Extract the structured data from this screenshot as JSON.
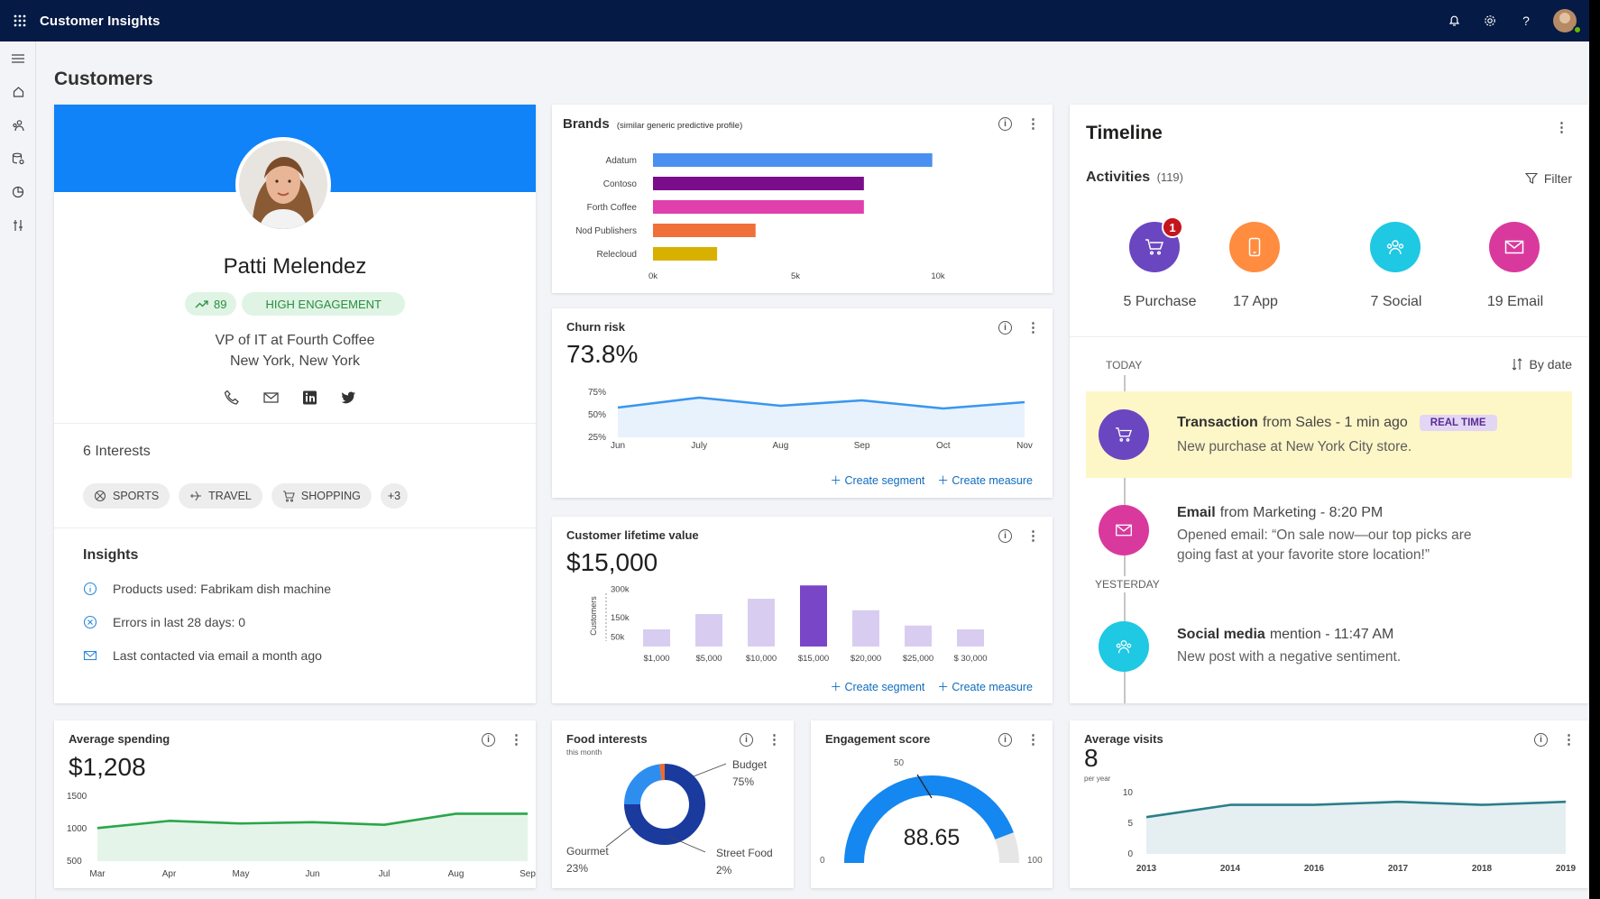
{
  "app": {
    "title": "Customer Insights"
  },
  "page": {
    "title": "Customers"
  },
  "profile": {
    "name": "Patti Melendez",
    "score": "89",
    "engagement": "HIGH ENGAGEMENT",
    "role": "VP of IT at Fourth Coffee",
    "location": "New York, New York",
    "interests_title": "6 Interests",
    "interests": [
      "SPORTS",
      "TRAVEL",
      "SHOPPING",
      "+3"
    ],
    "insights_title": "Insights",
    "insights": [
      "Products used: Fabrikam dish machine",
      "Errors in last 28 days: 0",
      "Last contacted via email a month ago"
    ]
  },
  "brands": {
    "title": "Brands",
    "subtitle": "(similar generic predictive profile)"
  },
  "churn": {
    "title": "Churn risk",
    "value": "73.8%",
    "create_segment": "Create segment",
    "create_measure": "Create measure"
  },
  "clv": {
    "title": "Customer lifetime value",
    "value": "$15,000",
    "ylabel": "Customers",
    "create_segment": "Create segment",
    "create_measure": "Create measure"
  },
  "avg_spending": {
    "title": "Average spending",
    "value": "$1,208"
  },
  "food": {
    "title": "Food interests",
    "subtitle": "this month",
    "labels": [
      {
        "name": "Budget",
        "pct": "75%"
      },
      {
        "name": "Gourmet",
        "pct": "23%"
      },
      {
        "name": "Street Food",
        "pct": "2%"
      }
    ]
  },
  "engagement": {
    "title": "Engagement score",
    "value": "88.65",
    "min": "0",
    "mid": "50",
    "max": "100"
  },
  "avg_visits": {
    "title": "Average visits",
    "value": "8",
    "unit": "per year"
  },
  "timeline": {
    "title": "Timeline",
    "activities_label": "Activities",
    "activities_count": "(119)",
    "filter": "Filter",
    "badge": "1",
    "categories": [
      {
        "label": "5 Purchase",
        "color": "#6b46c1"
      },
      {
        "label": "17 App",
        "color": "#ff8c3f"
      },
      {
        "label": "7 Social",
        "color": "#1fc8e3"
      },
      {
        "label": "19 Email",
        "color": "#d9399d"
      }
    ],
    "today": "TODAY",
    "yesterday": "YESTERDAY",
    "sort": "By date",
    "events": [
      {
        "title": "Transaction",
        "source": "from Sales - 1 min ago",
        "tag": "REAL TIME",
        "body": "New purchase at New York City store."
      },
      {
        "title": "Email",
        "source": "from Marketing - 8:20 PM",
        "body1": "Opened email: “On sale now—our top picks are",
        "body2": "going fast at your favorite store location!”"
      },
      {
        "title": "Social media",
        "source": "mention - 11:47 AM",
        "body": "New post with a negative sentiment."
      }
    ]
  },
  "colors": {
    "topbar": "#051a44",
    "accent": "#0f6cbd",
    "header_blue": "#0f83f7",
    "engagement_green": "#2a8d3f"
  },
  "chart_data": [
    {
      "type": "bar",
      "orientation": "horizontal",
      "title": "Brands",
      "subtitle": "(similar generic predictive profile)",
      "categories": [
        "Adatum",
        "Contoso",
        "Forth Coffee",
        "Nod Publishers",
        "Relecloud"
      ],
      "values": [
        9800,
        7400,
        7400,
        3600,
        2250
      ],
      "colors": [
        "#4a90f0",
        "#7a0d8a",
        "#e040ac",
        "#f0703a",
        "#d8b100"
      ],
      "xticks": [
        "0k",
        "5k",
        "10k"
      ],
      "xlim": [
        0,
        10000
      ]
    },
    {
      "type": "area",
      "title": "Churn risk",
      "categories": [
        "Jun",
        "July",
        "Aug",
        "Sep",
        "Oct",
        "Nov"
      ],
      "values": [
        58,
        69,
        60,
        66,
        57,
        64
      ],
      "yticks": [
        "75%",
        "50%",
        "25%"
      ],
      "ylim": [
        25,
        75
      ],
      "color": "#3a96ee"
    },
    {
      "type": "bar",
      "title": "Customer lifetime value",
      "ylabel": "Customers",
      "categories": [
        "$1,000",
        "$5,000",
        "$10,000",
        "$15,000",
        "$20,000",
        "$25,000",
        "$ 30,000"
      ],
      "values": [
        90,
        170,
        250,
        320,
        190,
        110,
        90
      ],
      "highlight_index": 3,
      "yticks": [
        "300k",
        "150k",
        "50k"
      ],
      "ylim": [
        0,
        340
      ],
      "color": "#d8cdf0",
      "highlight_color": "#7a46c8"
    },
    {
      "type": "area",
      "title": "Average spending",
      "categories": [
        "Mar",
        "Apr",
        "May",
        "Jun",
        "Jul",
        "Aug",
        "Sep"
      ],
      "values": [
        1010,
        1120,
        1080,
        1100,
        1060,
        1230,
        1230
      ],
      "yticks": [
        "1500",
        "1000",
        "500"
      ],
      "ylim": [
        500,
        1500
      ],
      "color": "#2aa64a"
    },
    {
      "type": "pie",
      "title": "Food interests",
      "subtitle": "this month",
      "categories": [
        "Budget",
        "Gourmet",
        "Street Food"
      ],
      "values": [
        75,
        23,
        2
      ],
      "colors": [
        "#1a3a9e",
        "#2e8ef0",
        "#f06a2a"
      ]
    },
    {
      "type": "gauge",
      "title": "Engagement score",
      "value": 88.65,
      "min": 0,
      "max": 100,
      "color": "#1487f0"
    },
    {
      "type": "area",
      "title": "Average visits",
      "categories": [
        "2013",
        "2014",
        "2016",
        "2017",
        "2018",
        "2019"
      ],
      "values": [
        6,
        8,
        8,
        8.5,
        8,
        8.5
      ],
      "yticks": [
        "10",
        "5",
        "0"
      ],
      "ylim": [
        0,
        10
      ],
      "color": "#2a7f8a"
    }
  ]
}
